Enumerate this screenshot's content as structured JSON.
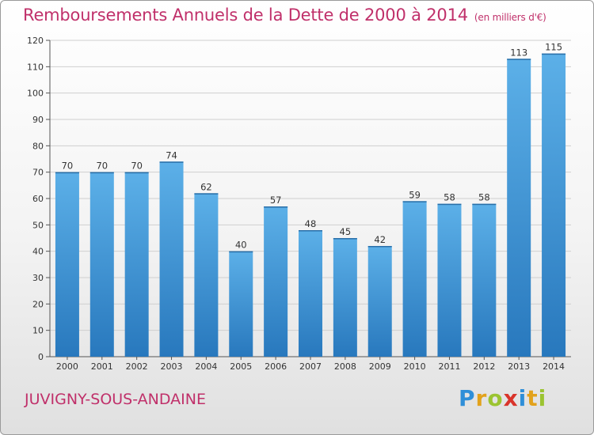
{
  "title": "Remboursements Annuels de la Dette de 2000 à 2014",
  "subtitle": "(en milliers d'€)",
  "city": "JUVIGNY-SOUS-ANDAINE",
  "logo": {
    "p": "P",
    "r": "r",
    "o": "o",
    "x": "x",
    "i1": "i",
    "t": "t",
    "i2": "i"
  },
  "colors": {
    "accent": "#c0306a",
    "bar_light": "#5aaee6",
    "bar_dark": "#2a7ec2"
  },
  "chart_data": {
    "type": "bar",
    "title": "Remboursements Annuels de la Dette de 2000 à 2014",
    "ylabel": "(en milliers d'€)",
    "xlabel": "",
    "categories": [
      "2000",
      "2001",
      "2002",
      "2003",
      "2004",
      "2005",
      "2006",
      "2007",
      "2008",
      "2009",
      "2010",
      "2011",
      "2012",
      "2013",
      "2014"
    ],
    "values": [
      70,
      70,
      70,
      74,
      62,
      40,
      57,
      48,
      45,
      42,
      59,
      58,
      58,
      113,
      115
    ],
    "ylim": [
      0,
      120
    ],
    "yticks": [
      0,
      10,
      20,
      30,
      40,
      50,
      60,
      70,
      80,
      90,
      100,
      110,
      120
    ],
    "grid": true
  }
}
